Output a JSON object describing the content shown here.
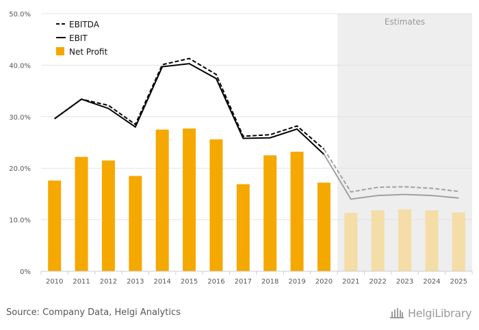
{
  "chart_data": {
    "type": "bar+line",
    "categories": [
      "2010",
      "2011",
      "2012",
      "2013",
      "2014",
      "2015",
      "2016",
      "2017",
      "2018",
      "2019",
      "2020",
      "2021",
      "2022",
      "2023",
      "2024",
      "2025"
    ],
    "series": [
      {
        "name": "Net Profit",
        "kind": "bar",
        "values": [
          17.6,
          22.2,
          21.5,
          18.5,
          27.5,
          27.7,
          25.6,
          16.9,
          22.5,
          23.2,
          17.2,
          11.3,
          11.8,
          12.0,
          11.8,
          11.4
        ]
      },
      {
        "name": "EBITDA",
        "kind": "line",
        "style": "dashed",
        "values": [
          29.6,
          33.4,
          32.2,
          28.5,
          40.1,
          41.3,
          38.2,
          26.2,
          26.5,
          28.2,
          23.7,
          15.4,
          16.3,
          16.4,
          16.1,
          15.5
        ]
      },
      {
        "name": "EBIT",
        "kind": "line",
        "style": "solid",
        "values": [
          29.6,
          33.4,
          31.6,
          28.0,
          39.7,
          40.3,
          37.4,
          25.8,
          25.9,
          27.6,
          22.7,
          14.0,
          14.7,
          14.9,
          14.7,
          14.2
        ]
      }
    ],
    "estimate_from_index": 11,
    "estimates_label": "Estimates",
    "ylim": [
      0,
      50
    ],
    "yticks": [
      0,
      10,
      20,
      30,
      40,
      50
    ],
    "ytick_labels": [
      "0%",
      "10.0%",
      "20.0%",
      "30.0%",
      "40.0%",
      "50.0%"
    ],
    "legend": {
      "position": "top-left",
      "entries": [
        "EBITDA",
        "EBIT",
        "Net Profit"
      ]
    },
    "colors": {
      "bar": "#F5A800",
      "bar_estimate": "#F4DDA6",
      "line": "#000000",
      "line_estimate": "#A0A0A0",
      "estimate_bg": "#EEEEEE",
      "grid": "#E3E3E3"
    }
  },
  "footer": {
    "source": "Source: Company Data, Helgi Analytics",
    "logo_text": "HelgiLibrary"
  }
}
